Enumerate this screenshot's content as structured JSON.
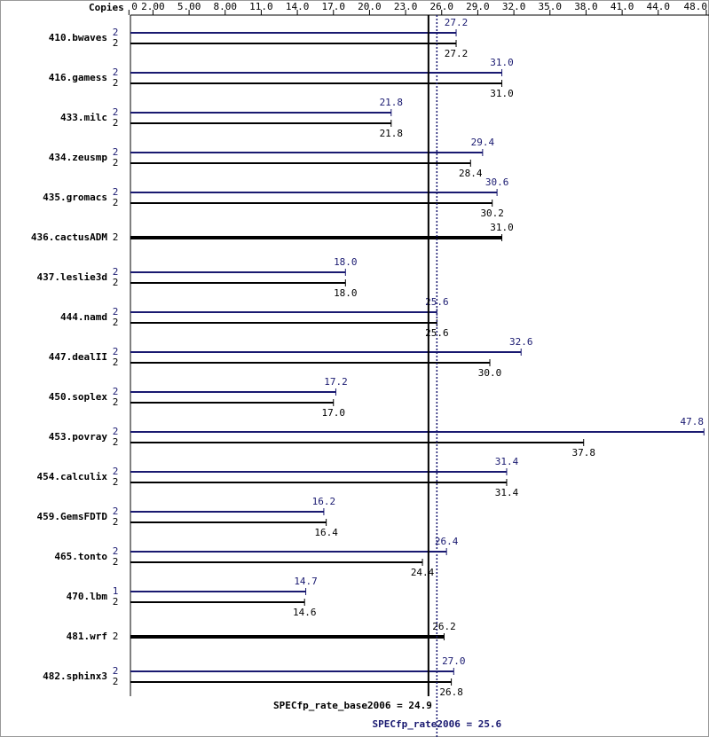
{
  "chart_data": {
    "type": "bar",
    "x_axis_label": "Copies",
    "xlim": [
      0,
      48
    ],
    "xticks": [
      0,
      {
        "value": 2,
        "label": "2.00"
      },
      {
        "value": 5,
        "label": "5.00"
      },
      {
        "value": 8,
        "label": "8.00"
      },
      {
        "value": 11,
        "label": "11.0"
      },
      {
        "value": 14,
        "label": "14.0"
      },
      {
        "value": 17,
        "label": "17.0"
      },
      {
        "value": 20,
        "label": "20.0"
      },
      {
        "value": 23,
        "label": "23.0"
      },
      {
        "value": 26,
        "label": "26.0"
      },
      {
        "value": 29,
        "label": "29.0"
      },
      {
        "value": 32,
        "label": "32.0"
      },
      {
        "value": 35,
        "label": "35.0"
      },
      {
        "value": 38,
        "label": "38.0"
      },
      {
        "value": 41,
        "label": "41.0"
      },
      {
        "value": 44,
        "label": "44.0"
      },
      {
        "value": 48,
        "label": "48.0"
      }
    ],
    "categories": [
      "410.bwaves",
      "416.gamess",
      "433.milc",
      "434.zeusmp",
      "435.gromacs",
      "436.cactusADM",
      "437.leslie3d",
      "444.namd",
      "447.dealII",
      "450.soplex",
      "453.povray",
      "454.calculix",
      "459.GemsFDTD",
      "465.tonto",
      "470.lbm",
      "481.wrf",
      "482.sphinx3"
    ],
    "series": [
      {
        "color": "#191970",
        "copies": [
          2,
          2,
          2,
          2,
          2,
          null,
          2,
          2,
          2,
          2,
          2,
          2,
          2,
          2,
          1,
          null,
          2
        ],
        "values": [
          27.2,
          31.0,
          21.8,
          29.4,
          30.6,
          null,
          18.0,
          25.6,
          32.6,
          17.2,
          47.8,
          31.4,
          16.2,
          26.4,
          14.7,
          null,
          27.0
        ],
        "value_labels": [
          "27.2",
          "31.0",
          "21.8",
          "29.4",
          "30.6",
          null,
          "18.0",
          "25.6",
          "32.6",
          "17.2",
          "47.8",
          "31.4",
          "16.2",
          "26.4",
          "14.7",
          null,
          "27.0"
        ]
      },
      {
        "color": "#000000",
        "copies": [
          2,
          2,
          2,
          2,
          2,
          2,
          2,
          2,
          2,
          2,
          2,
          2,
          2,
          2,
          2,
          2,
          2
        ],
        "values": [
          27.2,
          31.0,
          21.8,
          28.4,
          30.2,
          31.0,
          18.0,
          25.6,
          30.0,
          17.0,
          37.8,
          31.4,
          16.4,
          24.4,
          14.6,
          26.2,
          26.8
        ],
        "value_labels": [
          "27.2",
          "31.0",
          "21.8",
          "28.4",
          "30.2",
          "31.0",
          "18.0",
          "25.6",
          "30.0",
          "17.0",
          "37.8",
          "31.4",
          "16.4",
          "24.4",
          "14.6",
          "26.2",
          "26.8"
        ]
      }
    ],
    "reference_lines": [
      {
        "label": "SPECfp_rate_base2006 = 24.9",
        "value": 24.9,
        "color": "#000000"
      },
      {
        "label": "SPECfp_rate2006 = 25.6",
        "value": 25.6,
        "color": "#191970"
      }
    ]
  }
}
